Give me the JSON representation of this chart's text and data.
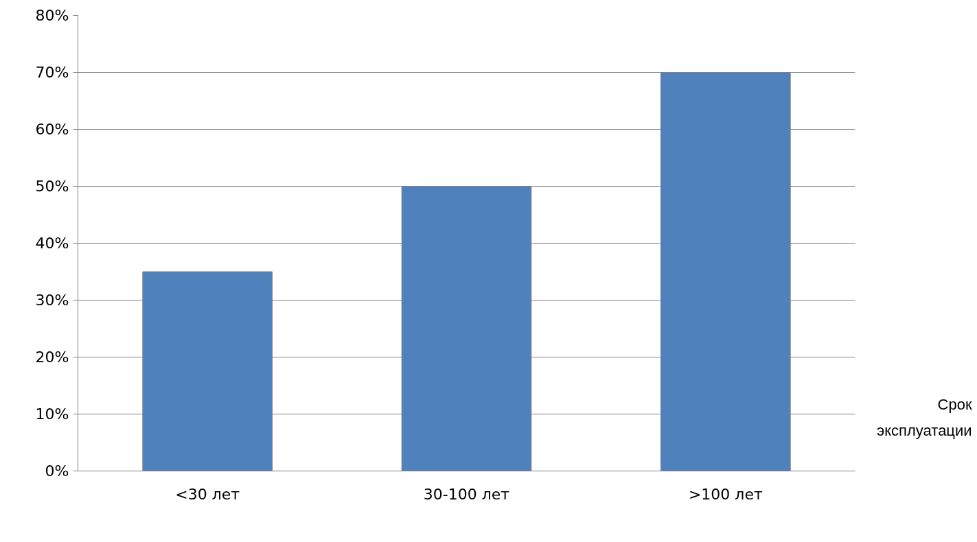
{
  "chart_data": {
    "type": "bar",
    "xlabel": "Срок эксплуатации",
    "categories": [
      "<30 лет",
      "30-100 лет",
      ">100 лет"
    ],
    "values": [
      35,
      50,
      70
    ],
    "color": "#4f81bd",
    "ylim": [
      0,
      80
    ],
    "yticks": [
      {
        "value": 0,
        "label": "0%"
      },
      {
        "value": 10,
        "label": "10%"
      },
      {
        "value": 20,
        "label": "20%"
      },
      {
        "value": 30,
        "label": "30%"
      },
      {
        "value": 40,
        "label": "40%"
      },
      {
        "value": 50,
        "label": "50%"
      },
      {
        "value": 60,
        "label": "60%"
      },
      {
        "value": 70,
        "label": "70%"
      },
      {
        "value": 80,
        "label": "80%"
      }
    ],
    "grid": "y"
  }
}
